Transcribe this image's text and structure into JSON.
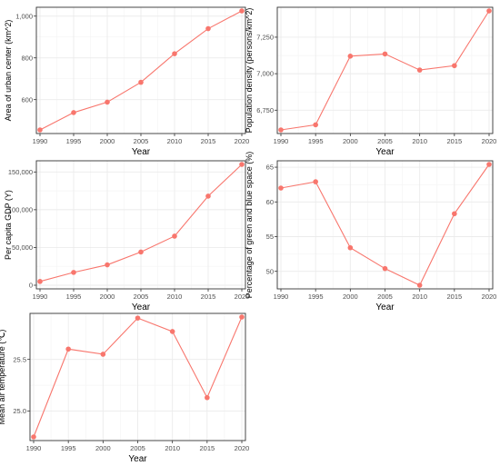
{
  "colors": {
    "line": "#f8766d",
    "point": "#f8766d",
    "frame": "#333333",
    "grid": "#ebebeb"
  },
  "chart_data": [
    {
      "type": "line",
      "xlabel": "Year",
      "ylabel": "Area of urban center (km^2)",
      "x": [
        1990,
        1995,
        2000,
        2005,
        2010,
        2015,
        2020
      ],
      "xticks": [
        "1990",
        "1995",
        "2000",
        "2005",
        "2010",
        "2015",
        "2020"
      ],
      "y": [
        455,
        538,
        588,
        683,
        820,
        940,
        1025
      ],
      "yticks": [
        600,
        800,
        1000
      ],
      "yticklabels": [
        "600",
        "800",
        "1,000"
      ],
      "xlim": [
        1990,
        2020
      ],
      "ylim": [
        455,
        1025
      ],
      "grid": true
    },
    {
      "type": "line",
      "xlabel": "Year",
      "ylabel": "Population density (persons/km^2)",
      "x": [
        1990,
        1995,
        2000,
        2005,
        2010,
        2015,
        2020
      ],
      "xticks": [
        "1990",
        "1995",
        "2000",
        "2005",
        "2010",
        "2015",
        "2020"
      ],
      "y": [
        6615,
        6650,
        7120,
        7135,
        7025,
        7055,
        7430
      ],
      "yticks": [
        6750,
        7000,
        7250
      ],
      "yticklabels": [
        "6,750",
        "7,000",
        "7,250"
      ],
      "xlim": [
        1990,
        2020
      ],
      "ylim": [
        6615,
        7430
      ],
      "grid": true
    },
    {
      "type": "line",
      "xlabel": "Year",
      "ylabel": "Per capita GDP (Y)",
      "x": [
        1990,
        1995,
        2000,
        2005,
        2010,
        2015,
        2020
      ],
      "xticks": [
        "1990",
        "1995",
        "2000",
        "2005",
        "2010",
        "2015",
        "2020"
      ],
      "y": [
        5000,
        17000,
        27000,
        44000,
        65000,
        118000,
        160000
      ],
      "yticks": [
        0,
        50000,
        100000,
        150000
      ],
      "yticklabels": [
        "0",
        "50,000",
        "100,000",
        "150,000"
      ],
      "xlim": [
        1990,
        2020
      ],
      "ylim": [
        0,
        160000
      ],
      "grid": true
    },
    {
      "type": "line",
      "xlabel": "Year",
      "ylabel": "Percentage of green and blue space (%)",
      "x": [
        1990,
        1995,
        2000,
        2005,
        2010,
        2015,
        2020
      ],
      "xticks": [
        "1990",
        "1995",
        "2000",
        "2005",
        "2010",
        "2015",
        "2020"
      ],
      "y": [
        62.0,
        62.9,
        53.4,
        50.4,
        48.0,
        58.3,
        65.4
      ],
      "yticks": [
        50,
        55,
        60,
        65
      ],
      "yticklabels": [
        "50",
        "55",
        "60",
        "65"
      ],
      "xlim": [
        1990,
        2020
      ],
      "ylim": [
        48.0,
        65.4
      ],
      "grid": true
    },
    {
      "type": "line",
      "xlabel": "Year",
      "ylabel": "Mean air temperature (℃)",
      "x": [
        1990,
        1995,
        2000,
        2005,
        2010,
        2015,
        2020
      ],
      "xticks": [
        "1990",
        "1995",
        "2000",
        "2005",
        "2010",
        "2015",
        "2020"
      ],
      "y": [
        24.75,
        25.6,
        25.55,
        25.9,
        25.77,
        25.13,
        25.91
      ],
      "yticks": [
        25.0,
        25.5
      ],
      "yticklabels": [
        "25.0",
        "25.5"
      ],
      "xlim": [
        1990,
        2020
      ],
      "ylim": [
        24.75,
        25.91
      ],
      "grid": true
    }
  ]
}
